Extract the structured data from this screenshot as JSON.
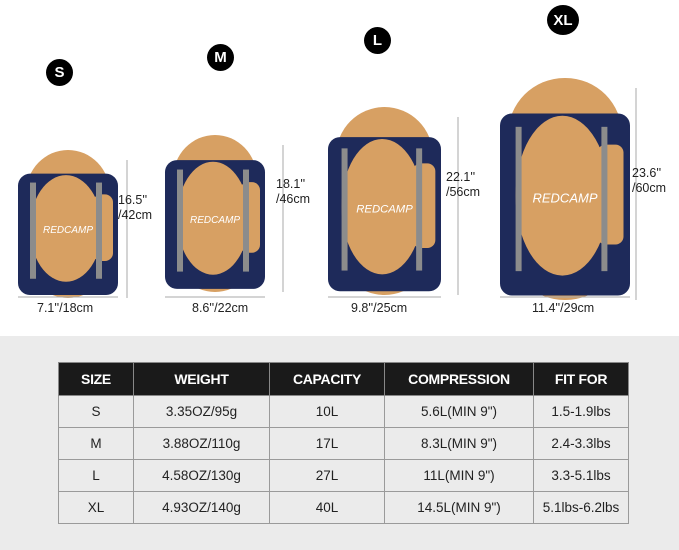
{
  "brand": "REDCAMP",
  "colors": {
    "navy": "#1e2a5a",
    "tan": "#d7a063",
    "strap": "#8c8c8c",
    "badge": "#000000"
  },
  "bags": [
    {
      "size": "S",
      "height": "16.5''",
      "height_cm": "/42cm",
      "width": "7.1''/18cm"
    },
    {
      "size": "M",
      "height": "18.1''",
      "height_cm": "/46cm",
      "width": "8.6''/22cm"
    },
    {
      "size": "L",
      "height": "22.1''",
      "height_cm": "/56cm",
      "width": "9.8''/25cm"
    },
    {
      "size": "XL",
      "height": "23.6''",
      "height_cm": "/60cm",
      "width": "11.4''/29cm"
    }
  ],
  "table": {
    "headers": [
      "SIZE",
      "WEIGHT",
      "CAPACITY",
      "COMPRESSION",
      "FIT FOR"
    ],
    "rows": [
      [
        "S",
        "3.35OZ/95g",
        "10L",
        "5.6L(MIN 9\")",
        "1.5-1.9lbs"
      ],
      [
        "M",
        "3.88OZ/110g",
        "17L",
        "8.3L(MIN 9\")",
        "2.4-3.3lbs"
      ],
      [
        "L",
        "4.58OZ/130g",
        "27L",
        "11L(MIN 9\")",
        "3.3-5.1lbs"
      ],
      [
        "XL",
        "4.93OZ/140g",
        "40L",
        "14.5L(MIN 9\")",
        "5.1lbs-6.2lbs"
      ]
    ]
  }
}
